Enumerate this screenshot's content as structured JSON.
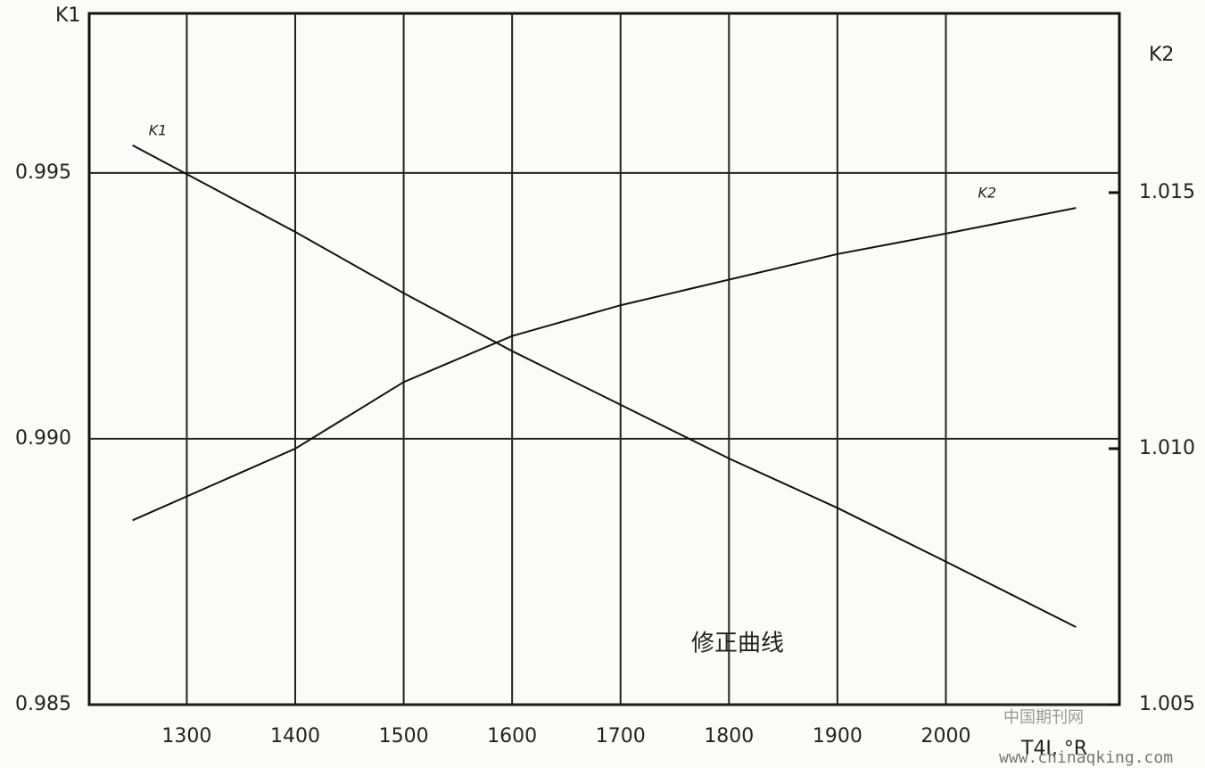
{
  "chart_data": {
    "type": "line",
    "y_label": "K1",
    "y2_label": "K2",
    "x_label": "T4I, °R",
    "annotation": "修正曲线",
    "watermark": [
      "中国期刊网",
      "www.chinaqking.com"
    ],
    "x": [
      1250,
      1400,
      1500,
      1600,
      1700,
      1800,
      1900,
      2000,
      2120
    ],
    "series": [
      {
        "name": "K1",
        "color": "#111111",
        "values": [
          0.99552,
          0.99389,
          0.99274,
          0.99165,
          0.99064,
          0.98963,
          0.9887,
          0.98769,
          0.98646
        ]
      },
      {
        "name": "K2",
        "color": "#111111",
        "axis": "y2",
        "values": [
          1.0086,
          1.01,
          1.0113,
          1.0122,
          1.0128,
          1.0133,
          1.0138,
          1.0142,
          1.0147
        ]
      }
    ],
    "xlim": [
      1210,
      2160
    ],
    "xticks": [
      1300,
      1400,
      1500,
      1600,
      1700,
      1800,
      1900,
      2000
    ],
    "ylim": [
      0.985,
      0.998
    ],
    "yticks": [
      0.985,
      {
        "value": 0.99,
        "label": "0.990"
      },
      0.995
    ],
    "y2lim": [
      1.005,
      1.0185
    ],
    "y2ticks": [
      1.005,
      {
        "value": 1.01,
        "label": "1.010"
      },
      1.015
    ],
    "grid": true
  }
}
